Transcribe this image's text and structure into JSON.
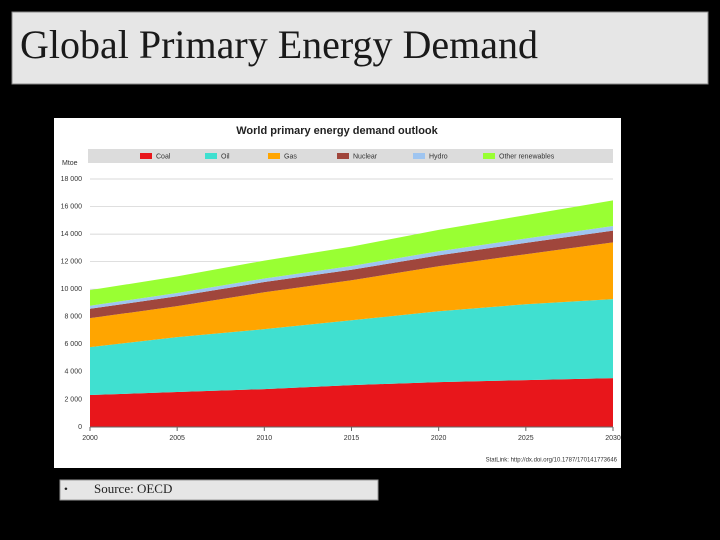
{
  "slide_title": "Global Primary Energy Demand",
  "chart_data": {
    "type": "area",
    "stacked": true,
    "title": "World primary energy demand outlook",
    "y_label": "Mtoe",
    "note": "StatLink: http://dx.doi.org/10.1787/170141773646",
    "x": [
      2000,
      2005,
      2010,
      2015,
      2020,
      2025,
      2030
    ],
    "xlim": [
      2000,
      2030
    ],
    "xticks": [
      2000,
      2005,
      2010,
      2015,
      2020,
      2025,
      2030
    ],
    "ylim": [
      0,
      18000
    ],
    "yticks": [
      0,
      {
        "value": 2000,
        "label": "2 000"
      },
      {
        "value": 4000,
        "label": "4 000"
      },
      {
        "value": 6000,
        "label": "6 000"
      },
      {
        "value": 8000,
        "label": "8 000"
      },
      {
        "value": 10000,
        "label": "10 000"
      },
      {
        "value": 12000,
        "label": "12 000"
      },
      {
        "value": 14000,
        "label": "14 000"
      },
      {
        "value": 16000,
        "label": "16 000"
      },
      {
        "value": 18000,
        "label": "18 000"
      }
    ],
    "grid": true,
    "series": [
      {
        "name": "Coal",
        "color": "#e8161b",
        "values": [
          2320,
          2540,
          2750,
          3040,
          3260,
          3400,
          3550
        ]
      },
      {
        "name": "Oil",
        "color": "#40e0d0",
        "values": [
          3480,
          3980,
          4350,
          4710,
          5140,
          5510,
          5730
        ]
      },
      {
        "name": "Gas",
        "color": "#ffa500",
        "values": [
          2100,
          2250,
          2680,
          2900,
          3270,
          3630,
          4120
        ]
      },
      {
        "name": "Nuclear",
        "color": "#a0463c",
        "values": [
          680,
          720,
          740,
          760,
          790,
          820,
          850
        ]
      },
      {
        "name": "Hydro",
        "color": "#9fc5f0",
        "values": [
          220,
          240,
          260,
          280,
          300,
          320,
          340
        ]
      },
      {
        "name": "Other renewables",
        "color": "#99ff33",
        "values": [
          1130,
          1200,
          1300,
          1400,
          1550,
          1700,
          1860
        ]
      }
    ]
  },
  "footer": {
    "bullet": "•",
    "source": "Source: OECD"
  }
}
